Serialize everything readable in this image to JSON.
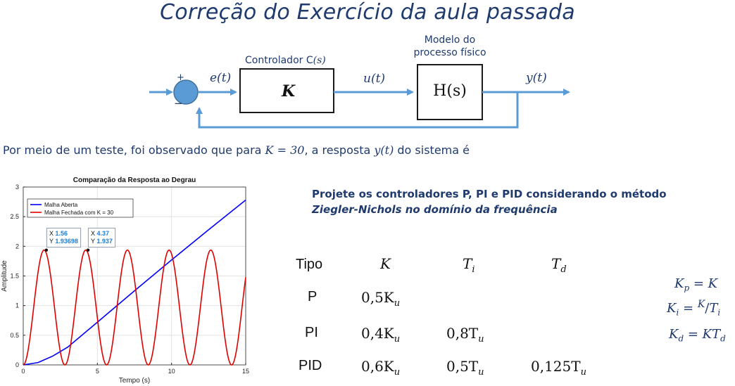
{
  "title": "Correção do Exercício da aula passada",
  "diagram": {
    "plus_sign": "+",
    "minus_sign": "−",
    "error_label": "e(t)",
    "controller_label": "Controlador C",
    "controller_arg": "(s)",
    "controller_gain": "K",
    "control_signal": "u(t)",
    "process_label_line1": "Modelo do",
    "process_label_line2": "processo físico",
    "process_block": "H(s)",
    "output_label": "y(t)",
    "accent_color": "#5b9bd5",
    "text_color": "#1f3a6e"
  },
  "intro": {
    "prefix": "Por meio de um teste, foi observado que para ",
    "condition": "K = 30",
    "middle": ", a resposta ",
    "signal": "y(t)",
    "suffix": " do sistema é"
  },
  "chart_data": {
    "type": "line",
    "title": "Comparação da Resposta ao Degrau",
    "xlabel": "Tempo (s)",
    "ylabel": "Amplitude",
    "xlim": [
      0,
      15
    ],
    "ylim": [
      0,
      3
    ],
    "xticks": [
      "0",
      "5",
      "10",
      "15"
    ],
    "yticks": [
      "0",
      "0.5",
      "1",
      "1.5",
      "2",
      "2.5",
      "3"
    ],
    "grid": true,
    "legend_position": "top-left",
    "series": [
      {
        "name": "Malha Aberta",
        "color": "#0000ff",
        "x": [
          0,
          1,
          2,
          3,
          5,
          7.5,
          10,
          12.5,
          15
        ],
        "y": [
          0,
          0.04,
          0.15,
          0.3,
          0.72,
          1.25,
          1.77,
          2.28,
          2.78
        ]
      },
      {
        "name": "Malha Fechada com K = 30",
        "color": "#e00000",
        "form": "1 - cos(2πt/2.81)",
        "period": 2.81,
        "peak": 1.937
      }
    ],
    "datatips": [
      {
        "x_label": "X",
        "x": "1.56",
        "y_label": "Y",
        "y": "1.93698"
      },
      {
        "x_label": "X",
        "x": "4.37",
        "y_label": "Y",
        "y": "1.937"
      }
    ]
  },
  "task": {
    "line1": "Projete os controladores P, PI e PID considerando o método",
    "line2": "Ziegler-Nichols no domínio da frequência"
  },
  "zn_table": {
    "headers": [
      "Tipo",
      "K",
      "T",
      "T"
    ],
    "header_subs": [
      "",
      "",
      "i",
      "d"
    ],
    "rows": [
      {
        "tipo": "P",
        "k": "0,5K",
        "k_sub": "u",
        "ti": "",
        "ti_sub": "",
        "td": "",
        "td_sub": ""
      },
      {
        "tipo": "PI",
        "k": "0,4K",
        "k_sub": "u",
        "ti": "0,8T",
        "ti_sub": "u",
        "td": "",
        "td_sub": ""
      },
      {
        "tipo": "PID",
        "k": "0,6K",
        "k_sub": "u",
        "ti": "0,5T",
        "ti_sub": "u",
        "td": "0,125T",
        "td_sub": "u"
      }
    ]
  },
  "formulas": {
    "kp_lhs": "K",
    "kp_sub": "p",
    "kp_rhs": " = K",
    "ki_lhs": "K",
    "ki_sub": "i",
    "ki_eq": " = ",
    "ki_num": "K",
    "ki_den": "T",
    "ki_den_sub": "i",
    "kd_lhs": "K",
    "kd_sub": "d",
    "kd_rhs": " = KT",
    "kd_rhs_sub": "d"
  }
}
